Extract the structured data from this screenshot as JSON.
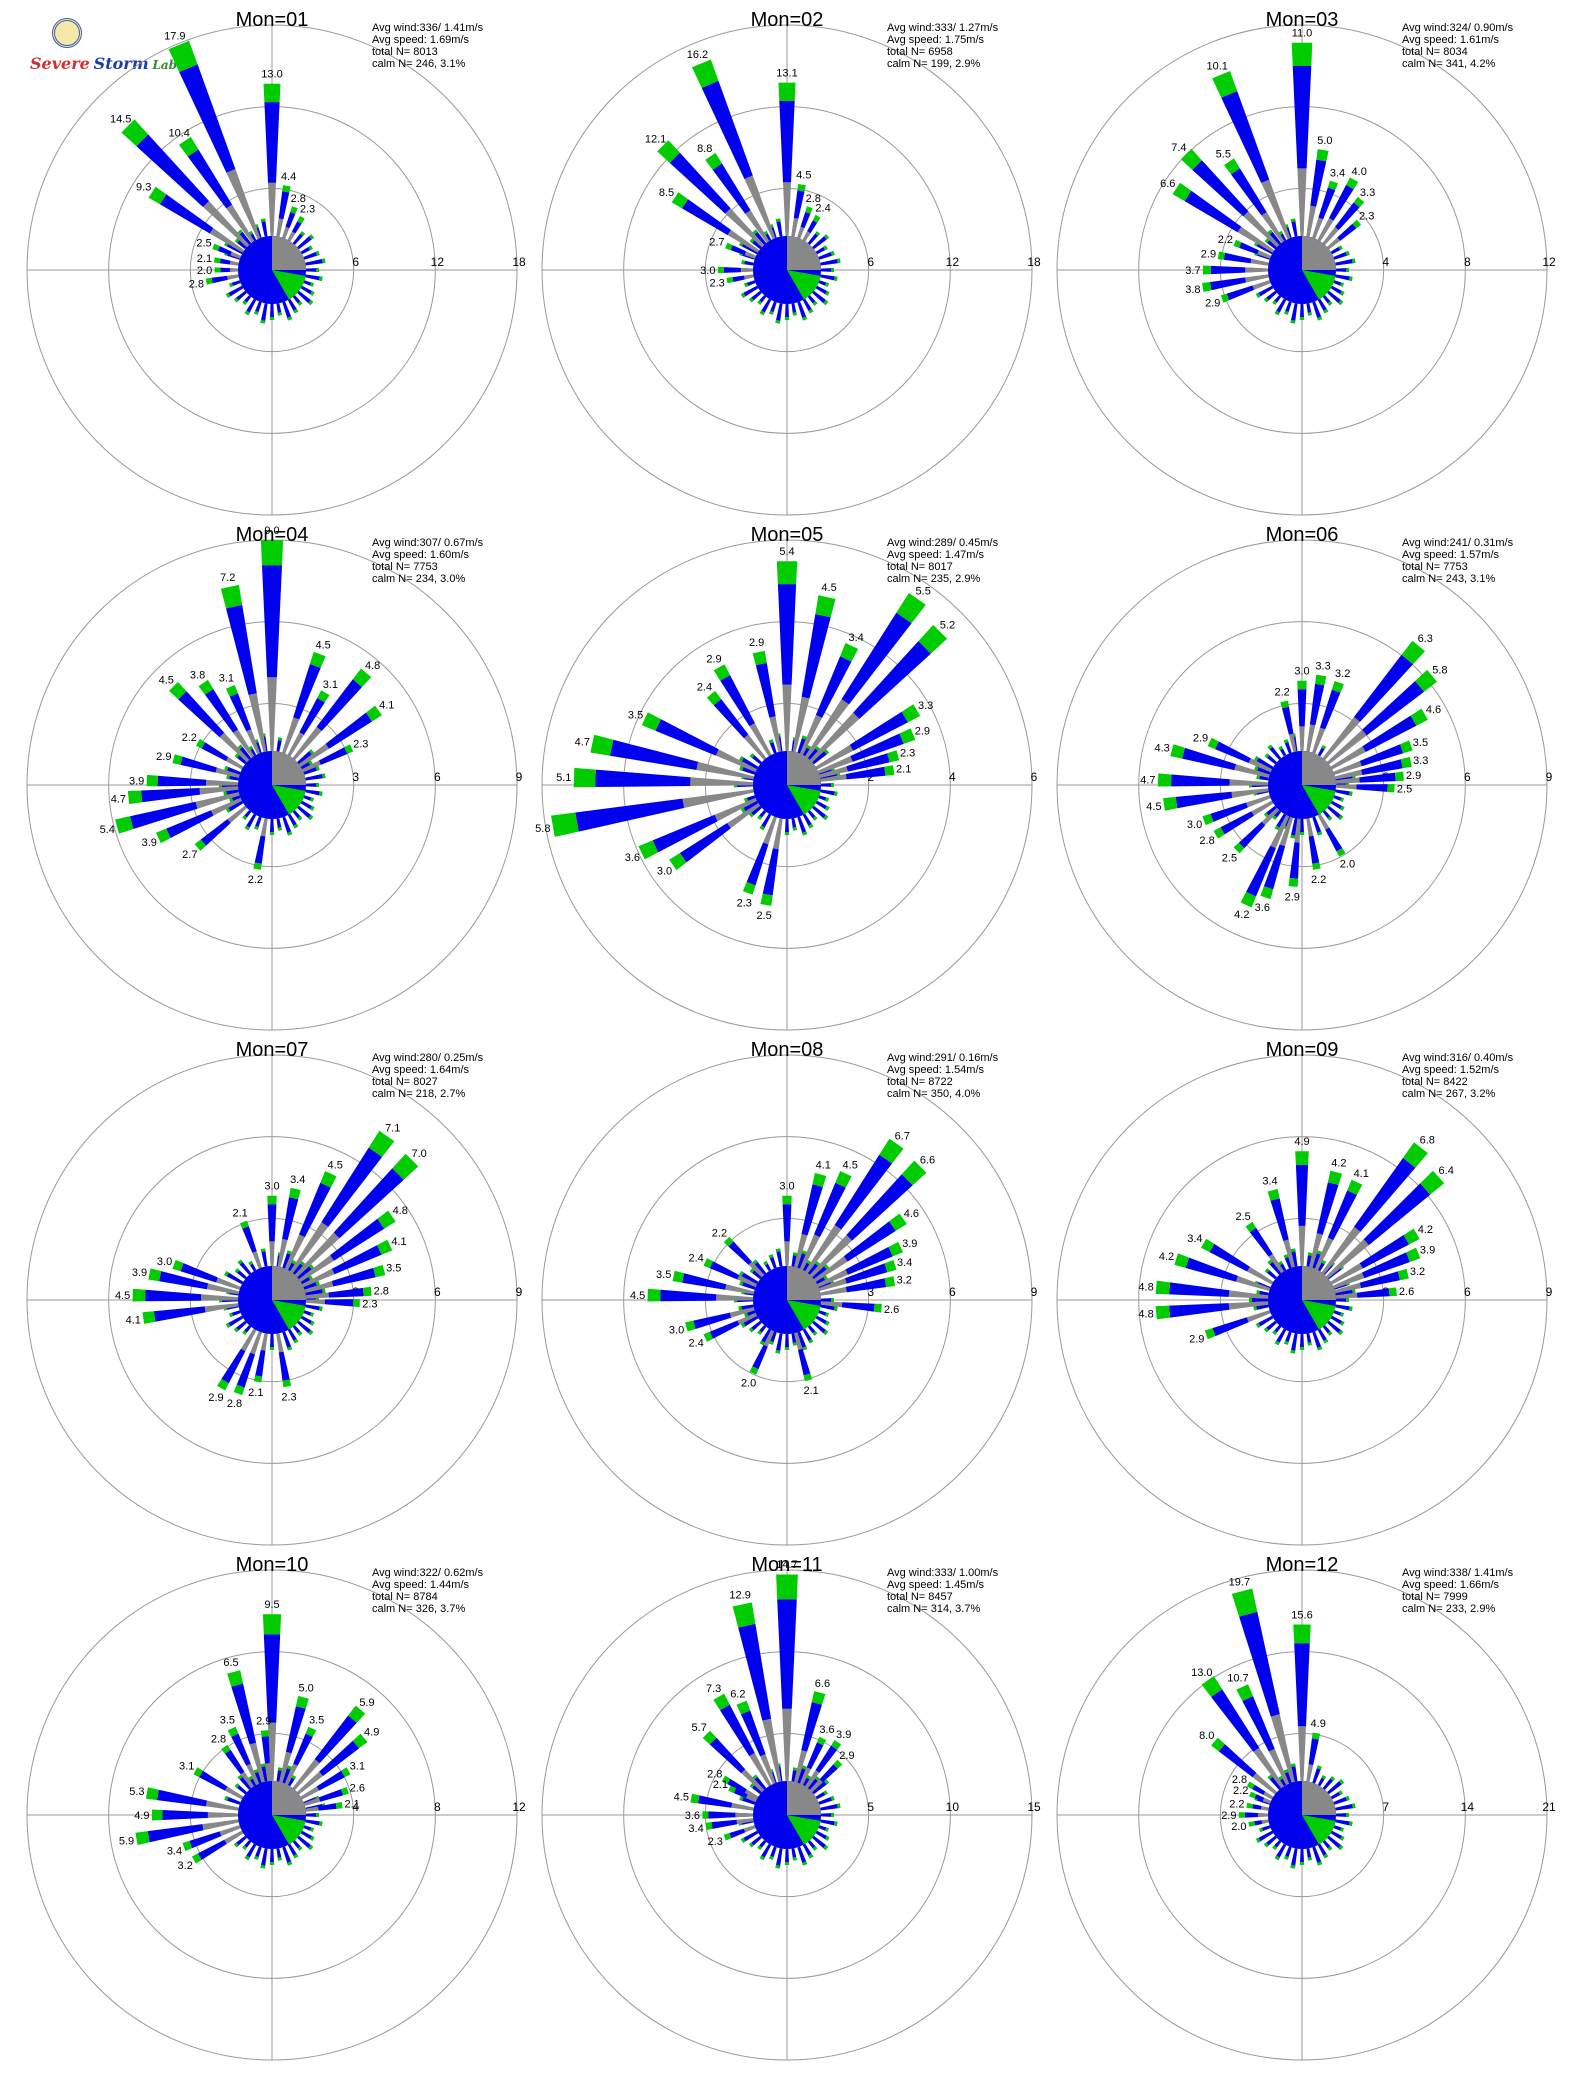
{
  "logo": {
    "letters_1": "Severe",
    "letters_2": "Storm",
    "lab": "Lab."
  },
  "colors": {
    "low": "#00cc00",
    "mid": "#0000ee",
    "high": "#888888",
    "ring": "#999999"
  },
  "chart_data": [
    {
      "type": "wind-rose",
      "title": "Mon=01",
      "info": {
        "avg_wind": "Avg wind:336/ 1.41m/s",
        "avg_speed": "Avg speed: 1.69m/s",
        "total_n": "total N=       8013",
        "calm_n": "calm N=    246,   3.1%"
      },
      "rings": [
        6,
        12,
        18
      ],
      "max": 18,
      "petals": [
        {
          "dir": 0,
          "value": 13.0
        },
        {
          "dir": 337.5,
          "value": 17.9
        },
        {
          "dir": 315,
          "value": 14.5
        },
        {
          "dir": 326,
          "value": 10.4
        },
        {
          "dir": 303,
          "value": 9.3
        },
        {
          "dir": 10,
          "value": 4.4
        },
        {
          "dir": 20,
          "value": 2.8
        },
        {
          "dir": 30,
          "value": 2.3
        },
        {
          "dir": 292,
          "value": 2.5
        },
        {
          "dir": 280,
          "value": 2.1
        },
        {
          "dir": 270,
          "value": 2.0
        },
        {
          "dir": 260,
          "value": 2.8
        }
      ]
    },
    {
      "type": "wind-rose",
      "title": "Mon=02",
      "info": {
        "avg_wind": "Avg wind:333/ 1.27m/s",
        "avg_speed": "Avg speed: 1.75m/s",
        "total_n": "total N=       6958",
        "calm_n": "calm N=    199,   2.9%"
      },
      "rings": [
        6,
        12,
        18
      ],
      "max": 18,
      "petals": [
        {
          "dir": 0,
          "value": 13.1
        },
        {
          "dir": 337.5,
          "value": 16.2
        },
        {
          "dir": 315,
          "value": 12.1
        },
        {
          "dir": 326,
          "value": 8.8
        },
        {
          "dir": 303,
          "value": 8.5
        },
        {
          "dir": 10,
          "value": 4.5
        },
        {
          "dir": 20,
          "value": 2.8
        },
        {
          "dir": 30,
          "value": 2.4
        },
        {
          "dir": 292,
          "value": 2.7
        },
        {
          "dir": 270,
          "value": 3.0
        },
        {
          "dir": 260,
          "value": 2.3
        }
      ]
    },
    {
      "type": "wind-rose",
      "title": "Mon=03",
      "info": {
        "avg_wind": "Avg wind:324/ 0.90m/s",
        "avg_speed": "Avg speed: 1.61m/s",
        "total_n": "total N=       8034",
        "calm_n": "calm N=    341,   4.2%"
      },
      "rings": [
        4,
        8,
        12
      ],
      "max": 12,
      "petals": [
        {
          "dir": 0,
          "value": 11.0
        },
        {
          "dir": 337.5,
          "value": 10.1
        },
        {
          "dir": 315,
          "value": 7.4
        },
        {
          "dir": 326,
          "value": 5.5
        },
        {
          "dir": 303,
          "value": 6.6
        },
        {
          "dir": 10,
          "value": 5.0
        },
        {
          "dir": 20,
          "value": 3.4
        },
        {
          "dir": 30,
          "value": 4.0
        },
        {
          "dir": 40,
          "value": 3.3
        },
        {
          "dir": 50,
          "value": 2.3
        },
        {
          "dir": 292,
          "value": 2.2
        },
        {
          "dir": 280,
          "value": 2.9
        },
        {
          "dir": 270,
          "value": 3.7
        },
        {
          "dir": 260,
          "value": 3.8
        },
        {
          "dir": 250,
          "value": 2.9
        }
      ]
    },
    {
      "type": "wind-rose",
      "title": "Mon=04",
      "info": {
        "avg_wind": "Avg wind:307/ 0.67m/s",
        "avg_speed": "Avg speed: 1.60m/s",
        "total_n": "total N=       7753",
        "calm_n": "calm N=    234,   3.0%"
      },
      "rings": [
        3,
        6,
        9
      ],
      "max": 9,
      "petals": [
        {
          "dir": 0,
          "value": 9.0
        },
        {
          "dir": 348,
          "value": 7.2
        },
        {
          "dir": 315,
          "value": 4.5
        },
        {
          "dir": 326,
          "value": 3.8
        },
        {
          "dir": 337,
          "value": 3.1
        },
        {
          "dir": 20,
          "value": 4.5
        },
        {
          "dir": 40,
          "value": 4.8
        },
        {
          "dir": 30,
          "value": 3.1
        },
        {
          "dir": 55,
          "value": 4.1
        },
        {
          "dir": 65,
          "value": 2.3
        },
        {
          "dir": 300,
          "value": 2.2
        },
        {
          "dir": 285,
          "value": 2.9
        },
        {
          "dir": 272,
          "value": 3.9
        },
        {
          "dir": 265,
          "value": 4.7
        },
        {
          "dir": 255,
          "value": 5.4
        },
        {
          "dir": 245,
          "value": 3.9
        },
        {
          "dir": 230,
          "value": 2.7
        },
        {
          "dir": 190,
          "value": 2.2
        }
      ]
    },
    {
      "type": "wind-rose",
      "title": "Mon=05",
      "info": {
        "avg_wind": "Avg wind:289/ 0.45m/s",
        "avg_speed": "Avg speed: 1.47m/s",
        "total_n": "total N=       8017",
        "calm_n": "calm N=    235,   2.9%"
      },
      "rings": [
        2,
        4,
        6
      ],
      "max": 6,
      "petals": [
        {
          "dir": 0,
          "value": 5.4
        },
        {
          "dir": 12,
          "value": 4.5
        },
        {
          "dir": 35,
          "value": 5.5
        },
        {
          "dir": 45,
          "value": 5.2
        },
        {
          "dir": 25,
          "value": 3.4
        },
        {
          "dir": 348,
          "value": 2.9
        },
        {
          "dir": 60,
          "value": 3.3
        },
        {
          "dir": 68,
          "value": 2.9
        },
        {
          "dir": 75,
          "value": 2.3
        },
        {
          "dir": 82,
          "value": 2.1
        },
        {
          "dir": 330,
          "value": 2.9
        },
        {
          "dir": 320,
          "value": 2.4
        },
        {
          "dir": 295,
          "value": 3.5
        },
        {
          "dir": 282,
          "value": 4.7
        },
        {
          "dir": 272,
          "value": 5.1
        },
        {
          "dir": 260,
          "value": 5.8
        },
        {
          "dir": 245,
          "value": 3.6
        },
        {
          "dir": 235,
          "value": 3.0
        },
        {
          "dir": 200,
          "value": 2.3
        },
        {
          "dir": 190,
          "value": 2.5
        }
      ]
    },
    {
      "type": "wind-rose",
      "title": "Mon=06",
      "info": {
        "avg_wind": "Avg wind:241/ 0.31m/s",
        "avg_speed": "Avg speed: 1.57m/s",
        "total_n": "total N=       7753",
        "calm_n": "calm N=    243,   3.1%"
      },
      "rings": [
        3,
        6,
        9
      ],
      "max": 9,
      "petals": [
        {
          "dir": 40,
          "value": 6.3
        },
        {
          "dir": 50,
          "value": 5.8
        },
        {
          "dir": 60,
          "value": 4.6
        },
        {
          "dir": 70,
          "value": 3.5
        },
        {
          "dir": 78,
          "value": 3.3
        },
        {
          "dir": 85,
          "value": 2.9
        },
        {
          "dir": 92,
          "value": 2.5
        },
        {
          "dir": 10,
          "value": 3.3
        },
        {
          "dir": 20,
          "value": 3.2
        },
        {
          "dir": 0,
          "value": 3.0
        },
        {
          "dir": 348,
          "value": 2.2
        },
        {
          "dir": 295,
          "value": 2.9
        },
        {
          "dir": 285,
          "value": 4.3
        },
        {
          "dir": 272,
          "value": 4.7
        },
        {
          "dir": 262,
          "value": 4.5
        },
        {
          "dir": 205,
          "value": 4.2
        },
        {
          "dir": 198,
          "value": 3.6
        },
        {
          "dir": 185,
          "value": 2.9
        },
        {
          "dir": 170,
          "value": 2.2
        },
        {
          "dir": 150,
          "value": 2.0
        },
        {
          "dir": 250,
          "value": 3.0
        },
        {
          "dir": 240,
          "value": 2.8
        },
        {
          "dir": 225,
          "value": 2.5
        }
      ]
    },
    {
      "type": "wind-rose",
      "title": "Mon=07",
      "info": {
        "avg_wind": "Avg wind:280/ 0.25m/s",
        "avg_speed": "Avg speed: 1.64m/s",
        "total_n": "total N=       8027",
        "calm_n": "calm N=    218,   2.7%"
      },
      "rings": [
        3,
        6,
        9
      ],
      "max": 9,
      "petals": [
        {
          "dir": 35,
          "value": 7.1
        },
        {
          "dir": 45,
          "value": 7.0
        },
        {
          "dir": 25,
          "value": 4.5
        },
        {
          "dir": 12,
          "value": 3.4
        },
        {
          "dir": 0,
          "value": 3.0
        },
        {
          "dir": 55,
          "value": 4.8
        },
        {
          "dir": 65,
          "value": 4.1
        },
        {
          "dir": 75,
          "value": 3.5
        },
        {
          "dir": 85,
          "value": 2.8
        },
        {
          "dir": 92,
          "value": 2.3
        },
        {
          "dir": 340,
          "value": 2.1
        },
        {
          "dir": 290,
          "value": 3.0
        },
        {
          "dir": 282,
          "value": 3.9
        },
        {
          "dir": 272,
          "value": 4.5
        },
        {
          "dir": 262,
          "value": 4.1
        },
        {
          "dir": 210,
          "value": 2.9
        },
        {
          "dir": 200,
          "value": 2.8
        },
        {
          "dir": 190,
          "value": 2.1
        },
        {
          "dir": 170,
          "value": 2.3
        }
      ]
    },
    {
      "type": "wind-rose",
      "title": "Mon=08",
      "info": {
        "avg_wind": "Avg wind:291/ 0.16m/s",
        "avg_speed": "Avg speed: 1.54m/s",
        "total_n": "total N=       8722",
        "calm_n": "calm N=    350,   4.0%"
      },
      "rings": [
        3,
        6,
        9
      ],
      "max": 9,
      "petals": [
        {
          "dir": 35,
          "value": 6.7
        },
        {
          "dir": 45,
          "value": 6.6
        },
        {
          "dir": 15,
          "value": 4.1
        },
        {
          "dir": 25,
          "value": 4.5
        },
        {
          "dir": 0,
          "value": 3.0
        },
        {
          "dir": 55,
          "value": 4.6
        },
        {
          "dir": 65,
          "value": 3.9
        },
        {
          "dir": 72,
          "value": 3.4
        },
        {
          "dir": 80,
          "value": 3.2
        },
        {
          "dir": 95,
          "value": 2.6
        },
        {
          "dir": 315,
          "value": 2.2
        },
        {
          "dir": 295,
          "value": 2.4
        },
        {
          "dir": 282,
          "value": 3.5
        },
        {
          "dir": 272,
          "value": 4.5
        },
        {
          "dir": 255,
          "value": 3.0
        },
        {
          "dir": 245,
          "value": 2.4
        },
        {
          "dir": 205,
          "value": 2.0
        },
        {
          "dir": 165,
          "value": 2.1
        }
      ]
    },
    {
      "type": "wind-rose",
      "title": "Mon=09",
      "info": {
        "avg_wind": "Avg wind:316/ 0.40m/s",
        "avg_speed": "Avg speed: 1.52m/s",
        "total_n": "total N=       8422",
        "calm_n": "calm N=    267,   3.2%"
      },
      "rings": [
        3,
        6,
        9
      ],
      "max": 9,
      "petals": [
        {
          "dir": 0,
          "value": 4.9
        },
        {
          "dir": 38,
          "value": 6.8
        },
        {
          "dir": 48,
          "value": 6.4
        },
        {
          "dir": 15,
          "value": 4.2
        },
        {
          "dir": 25,
          "value": 4.1
        },
        {
          "dir": 60,
          "value": 4.2
        },
        {
          "dir": 68,
          "value": 3.9
        },
        {
          "dir": 76,
          "value": 3.2
        },
        {
          "dir": 85,
          "value": 2.6
        },
        {
          "dir": 345,
          "value": 3.4
        },
        {
          "dir": 325,
          "value": 2.5
        },
        {
          "dir": 300,
          "value": 3.4
        },
        {
          "dir": 288,
          "value": 4.2
        },
        {
          "dir": 275,
          "value": 4.8
        },
        {
          "dir": 265,
          "value": 4.8
        },
        {
          "dir": 250,
          "value": 2.9
        }
      ]
    },
    {
      "type": "wind-rose",
      "title": "Mon=10",
      "info": {
        "avg_wind": "Avg wind:322/ 0.62m/s",
        "avg_speed": "Avg speed: 1.44m/s",
        "total_n": "total N=       8784",
        "calm_n": "calm N=    326,   3.7%"
      },
      "rings": [
        4,
        8,
        12
      ],
      "max": 12,
      "petals": [
        {
          "dir": 0,
          "value": 9.5
        },
        {
          "dir": 345,
          "value": 6.5
        },
        {
          "dir": 15,
          "value": 5.0
        },
        {
          "dir": 40,
          "value": 5.9
        },
        {
          "dir": 50,
          "value": 4.9
        },
        {
          "dir": 25,
          "value": 3.5
        },
        {
          "dir": 60,
          "value": 3.1
        },
        {
          "dir": 72,
          "value": 2.6
        },
        {
          "dir": 82,
          "value": 2.1
        },
        {
          "dir": 325,
          "value": 2.8
        },
        {
          "dir": 335,
          "value": 3.5
        },
        {
          "dir": 355,
          "value": 2.9
        },
        {
          "dir": 300,
          "value": 3.1
        },
        {
          "dir": 280,
          "value": 5.3
        },
        {
          "dir": 270,
          "value": 4.9
        },
        {
          "dir": 260,
          "value": 5.9
        },
        {
          "dir": 250,
          "value": 3.4
        },
        {
          "dir": 240,
          "value": 3.2
        }
      ]
    },
    {
      "type": "wind-rose",
      "title": "Mon=11",
      "info": {
        "avg_wind": "Avg wind:333/ 1.00m/s",
        "avg_speed": "Avg speed: 1.45m/s",
        "total_n": "total N=       8457",
        "calm_n": "calm N=    314,   3.7%"
      },
      "rings": [
        5,
        10,
        15
      ],
      "max": 15,
      "petals": [
        {
          "dir": 0,
          "value": 14.7
        },
        {
          "dir": 348,
          "value": 12.9
        },
        {
          "dir": 15,
          "value": 6.6
        },
        {
          "dir": 330,
          "value": 7.3
        },
        {
          "dir": 338,
          "value": 6.2
        },
        {
          "dir": 315,
          "value": 5.7
        },
        {
          "dir": 25,
          "value": 3.6
        },
        {
          "dir": 35,
          "value": 3.9
        },
        {
          "dir": 45,
          "value": 2.9
        },
        {
          "dir": 300,
          "value": 2.8
        },
        {
          "dir": 295,
          "value": 2.1
        },
        {
          "dir": 280,
          "value": 4.5
        },
        {
          "dir": 270,
          "value": 3.6
        },
        {
          "dir": 262,
          "value": 3.4
        },
        {
          "dir": 250,
          "value": 2.3
        }
      ]
    },
    {
      "type": "wind-rose",
      "title": "Mon=12",
      "info": {
        "avg_wind": "Avg wind:338/ 1.41m/s",
        "avg_speed": "Avg speed: 1.66m/s",
        "total_n": "total N=       7999",
        "calm_n": "calm N=    233,   2.9%"
      },
      "rings": [
        7,
        14,
        21
      ],
      "max": 21,
      "petals": [
        {
          "dir": 0,
          "value": 15.6
        },
        {
          "dir": 345,
          "value": 19.7
        },
        {
          "dir": 325,
          "value": 13.0
        },
        {
          "dir": 335,
          "value": 10.7
        },
        {
          "dir": 310,
          "value": 8.0
        },
        {
          "dir": 10,
          "value": 4.9
        },
        {
          "dir": 300,
          "value": 2.8
        },
        {
          "dir": 292,
          "value": 2.2
        },
        {
          "dir": 280,
          "value": 2.2
        },
        {
          "dir": 270,
          "value": 2.9
        },
        {
          "dir": 260,
          "value": 2.0
        }
      ]
    }
  ]
}
